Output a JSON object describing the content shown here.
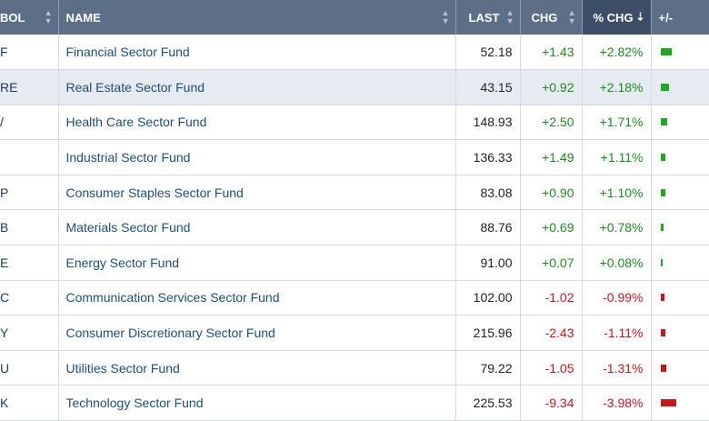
{
  "header": {
    "symbol": "BOL",
    "name": "NAME",
    "last": "LAST",
    "chg": "CHG",
    "pct_chg": "% CHG",
    "plus_minus": "+/-"
  },
  "rows": [
    {
      "sym": "F",
      "name": "Financial Sector Fund",
      "last": "52.18",
      "chg": "+1.43",
      "pct": "+2.82%",
      "pct_value": 2.82
    },
    {
      "sym": "RE",
      "name": "Real Estate Sector Fund",
      "last": "43.15",
      "chg": "+0.92",
      "pct": "+2.18%",
      "pct_value": 2.18
    },
    {
      "sym": "/",
      "name": "Health Care Sector Fund",
      "last": "148.93",
      "chg": "+2.50",
      "pct": "+1.71%",
      "pct_value": 1.71
    },
    {
      "sym": "",
      "name": "Industrial Sector Fund",
      "last": "136.33",
      "chg": "+1.49",
      "pct": "+1.11%",
      "pct_value": 1.11
    },
    {
      "sym": "P",
      "name": "Consumer Staples Sector Fund",
      "last": "83.08",
      "chg": "+0.90",
      "pct": "+1.10%",
      "pct_value": 1.1
    },
    {
      "sym": "B",
      "name": "Materials Sector Fund",
      "last": "88.76",
      "chg": "+0.69",
      "pct": "+0.78%",
      "pct_value": 0.78
    },
    {
      "sym": "E",
      "name": "Energy Sector Fund",
      "last": "91.00",
      "chg": "+0.07",
      "pct": "+0.08%",
      "pct_value": 0.08
    },
    {
      "sym": "C",
      "name": "Communication Services Sector Fund",
      "last": "102.00",
      "chg": "-1.02",
      "pct": "-0.99%",
      "pct_value": -0.99
    },
    {
      "sym": "Y",
      "name": "Consumer Discretionary Sector Fund",
      "last": "215.96",
      "chg": "-2.43",
      "pct": "-1.11%",
      "pct_value": -1.11
    },
    {
      "sym": "U",
      "name": "Utilities Sector Fund",
      "last": "79.22",
      "chg": "-1.05",
      "pct": "-1.31%",
      "pct_value": -1.31
    },
    {
      "sym": "K",
      "name": "Technology Sector Fund",
      "last": "225.53",
      "chg": "-9.34",
      "pct": "-3.98%",
      "pct_value": -3.98
    }
  ],
  "highlighted_row": 1,
  "colors": {
    "up": "#1ea81e",
    "down": "#c8161d",
    "header_bg": "#5d6f86",
    "sorted_header_bg": "#3c4f66"
  }
}
